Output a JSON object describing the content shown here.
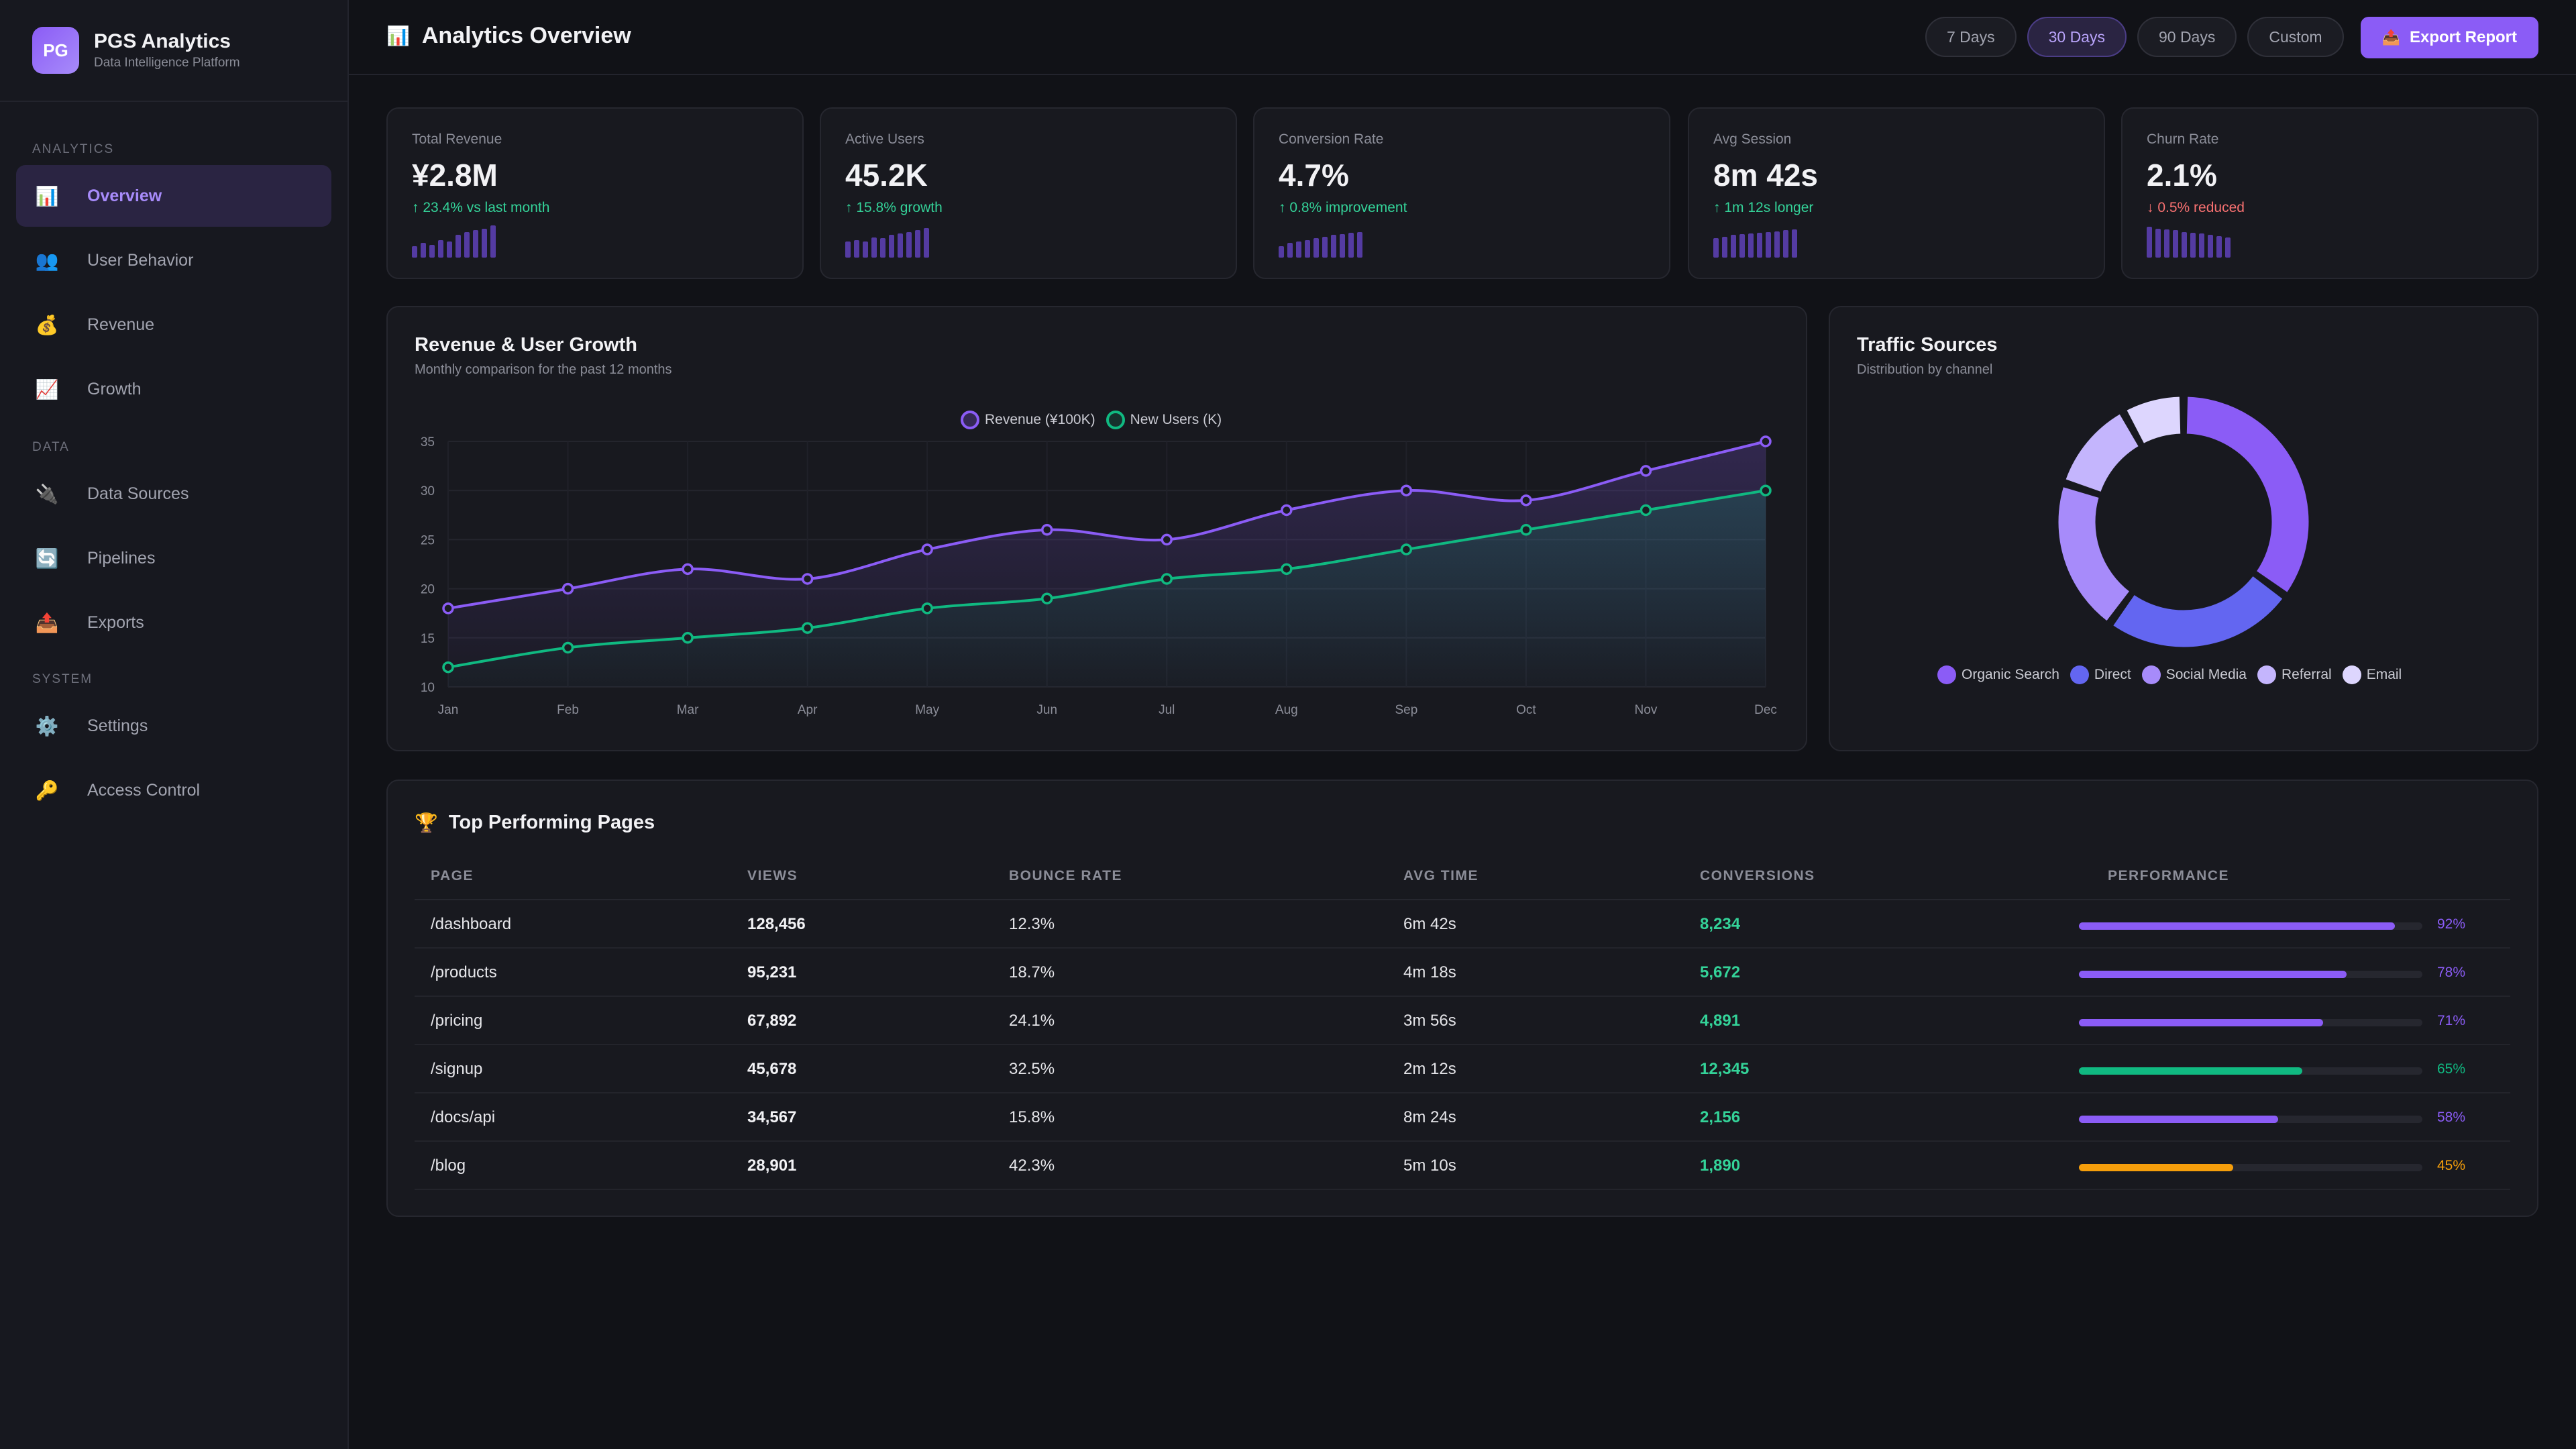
{
  "brand": {
    "logo": "PG",
    "name": "PGS Analytics",
    "subtitle": "Data Intelligence Platform"
  },
  "sidebar": {
    "sections": [
      {
        "label": "ANALYTICS",
        "items": [
          {
            "label": "Overview",
            "icon": "bar-chart-icon",
            "active": true
          },
          {
            "label": "User Behavior",
            "icon": "users-icon"
          },
          {
            "label": "Revenue",
            "icon": "money-bag-icon"
          },
          {
            "label": "Growth",
            "icon": "trend-up-icon"
          }
        ]
      },
      {
        "label": "DATA",
        "items": [
          {
            "label": "Data Sources",
            "icon": "plug-icon"
          },
          {
            "label": "Pipelines",
            "icon": "cycle-icon"
          },
          {
            "label": "Exports",
            "icon": "outbox-icon"
          }
        ]
      },
      {
        "label": "SYSTEM",
        "items": [
          {
            "label": "Settings",
            "icon": "gear-icon"
          },
          {
            "label": "Access Control",
            "icon": "key-icon"
          }
        ]
      }
    ]
  },
  "header": {
    "title": "Analytics Overview",
    "ranges": [
      "7 Days",
      "30 Days",
      "90 Days",
      "Custom"
    ],
    "active_range": "30 Days",
    "export_label": "Export Report"
  },
  "kpis": [
    {
      "label": "Total Revenue",
      "value": "¥2.8M",
      "delta": "↑ 23.4% vs last month",
      "trend": "up",
      "spark": [
        0.35,
        0.45,
        0.4,
        0.55,
        0.5,
        0.7,
        0.8,
        0.85,
        0.9,
        1.0
      ]
    },
    {
      "label": "Active Users",
      "value": "45.2K",
      "delta": "↑ 15.8% growth",
      "trend": "up",
      "spark": [
        0.5,
        0.55,
        0.5,
        0.62,
        0.6,
        0.7,
        0.75,
        0.8,
        0.85,
        0.92
      ]
    },
    {
      "label": "Conversion Rate",
      "value": "4.7%",
      "delta": "↑ 0.8% improvement",
      "trend": "up",
      "spark": [
        0.35,
        0.45,
        0.5,
        0.55,
        0.6,
        0.65,
        0.7,
        0.72,
        0.78,
        0.8
      ]
    },
    {
      "label": "Avg Session",
      "value": "8m 42s",
      "delta": "↑ 1m 12s longer",
      "trend": "up",
      "spark": [
        0.6,
        0.65,
        0.7,
        0.72,
        0.75,
        0.78,
        0.8,
        0.82,
        0.85,
        0.88
      ]
    },
    {
      "label": "Churn Rate",
      "value": "2.1%",
      "delta": "↓ 0.5% reduced",
      "trend": "down",
      "spark": [
        0.95,
        0.9,
        0.88,
        0.85,
        0.8,
        0.78,
        0.75,
        0.7,
        0.66,
        0.62
      ]
    }
  ],
  "growth_panel": {
    "title": "Revenue & User Growth",
    "subtitle": "Monthly comparison for the past 12 months"
  },
  "traffic_panel": {
    "title": "Traffic Sources",
    "subtitle": "Distribution by channel"
  },
  "chart_data": [
    {
      "type": "line",
      "title": "Revenue & User Growth",
      "x": [
        "Jan",
        "Feb",
        "Mar",
        "Apr",
        "May",
        "Jun",
        "Jul",
        "Aug",
        "Sep",
        "Oct",
        "Nov",
        "Dec"
      ],
      "ylim": [
        10,
        35
      ],
      "yticks": [
        10,
        15,
        20,
        25,
        30,
        35
      ],
      "grid": true,
      "legend": "top-center",
      "series": [
        {
          "name": "Revenue (¥100K)",
          "color": "#8b5cf6",
          "values": [
            18,
            20,
            22,
            21,
            24,
            26,
            25,
            28,
            30,
            29,
            32,
            35
          ]
        },
        {
          "name": "New Users (K)",
          "color": "#10b981",
          "values": [
            12,
            14,
            15,
            16,
            18,
            19,
            21,
            22,
            24,
            26,
            28,
            30
          ]
        }
      ]
    },
    {
      "type": "pie",
      "title": "Traffic Sources",
      "legend": "bottom",
      "categories": [
        "Organic Search",
        "Direct",
        "Social Media",
        "Referral",
        "Email"
      ],
      "values": [
        35,
        25,
        20,
        12,
        8
      ],
      "colors": [
        "#8b5cf6",
        "#6366f1",
        "#a78bfa",
        "#c4b5fd",
        "#ddd6fe"
      ]
    }
  ],
  "top_pages": {
    "title": "Top Performing Pages",
    "columns": [
      "PAGE",
      "VIEWS",
      "BOUNCE RATE",
      "AVG TIME",
      "CONVERSIONS",
      "PERFORMANCE"
    ],
    "rows": [
      {
        "page": "/dashboard",
        "views": "128,456",
        "bounce": "12.3%",
        "time": "6m 42s",
        "conv": "8,234",
        "perf": 92,
        "perf_label": "92%",
        "color": "#8b5cf6"
      },
      {
        "page": "/products",
        "views": "95,231",
        "bounce": "18.7%",
        "time": "4m 18s",
        "conv": "5,672",
        "perf": 78,
        "perf_label": "78%",
        "color": "#8b5cf6"
      },
      {
        "page": "/pricing",
        "views": "67,892",
        "bounce": "24.1%",
        "time": "3m 56s",
        "conv": "4,891",
        "perf": 71,
        "perf_label": "71%",
        "color": "#8b5cf6"
      },
      {
        "page": "/signup",
        "views": "45,678",
        "bounce": "32.5%",
        "time": "2m 12s",
        "conv": "12,345",
        "perf": 65,
        "perf_label": "65%",
        "color": "#10b981"
      },
      {
        "page": "/docs/api",
        "views": "34,567",
        "bounce": "15.8%",
        "time": "8m 24s",
        "conv": "2,156",
        "perf": 58,
        "perf_label": "58%",
        "color": "#8b5cf6"
      },
      {
        "page": "/blog",
        "views": "28,901",
        "bounce": "42.3%",
        "time": "5m 10s",
        "conv": "1,890",
        "perf": 45,
        "perf_label": "45%",
        "color": "#f59e0b"
      }
    ]
  }
}
